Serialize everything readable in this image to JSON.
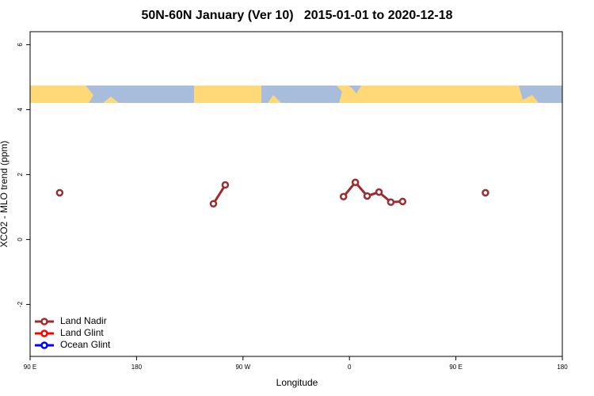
{
  "chart_data": {
    "type": "line",
    "title": "50N-60N January (Ver 10)   2015-01-01 to 2020-12-18",
    "xlabel": "Longitude",
    "ylabel": "XCO2 - MLO trend (ppm)",
    "x": [
      115,
      125,
      245,
      255,
      265,
      355,
      365,
      375,
      385,
      395,
      405,
      415,
      475
    ],
    "series": [
      {
        "name": "Land Nadir",
        "color": "#9b2c2f",
        "values": [
          1.44,
          null,
          1.1,
          1.68,
          null,
          1.32,
          1.76,
          1.34,
          1.46,
          1.15,
          1.17,
          null,
          1.44
        ]
      },
      {
        "name": "Land Glint",
        "color": "#ff0000",
        "values": [
          null,
          null,
          null,
          null,
          null,
          null,
          null,
          null,
          null,
          null,
          null,
          null,
          null
        ]
      },
      {
        "name": "Ocean Glint",
        "color": "#0000ff",
        "values": [
          null,
          null,
          null,
          null,
          null,
          null,
          null,
          null,
          null,
          null,
          null,
          null,
          null
        ]
      }
    ],
    "xlim": [
      90,
      540
    ],
    "xticks": [
      {
        "value": 90,
        "label": "90 E"
      },
      180,
      {
        "value": 270,
        "label": "90 W"
      },
      {
        "value": 360,
        "label": "0"
      },
      {
        "value": 450,
        "label": "90 E"
      },
      {
        "value": 540,
        "label": "180"
      }
    ],
    "ylim": [
      -3.6,
      6.4
    ],
    "yticks": [
      -2,
      0,
      2,
      4,
      6
    ],
    "legend": "lower left"
  }
}
